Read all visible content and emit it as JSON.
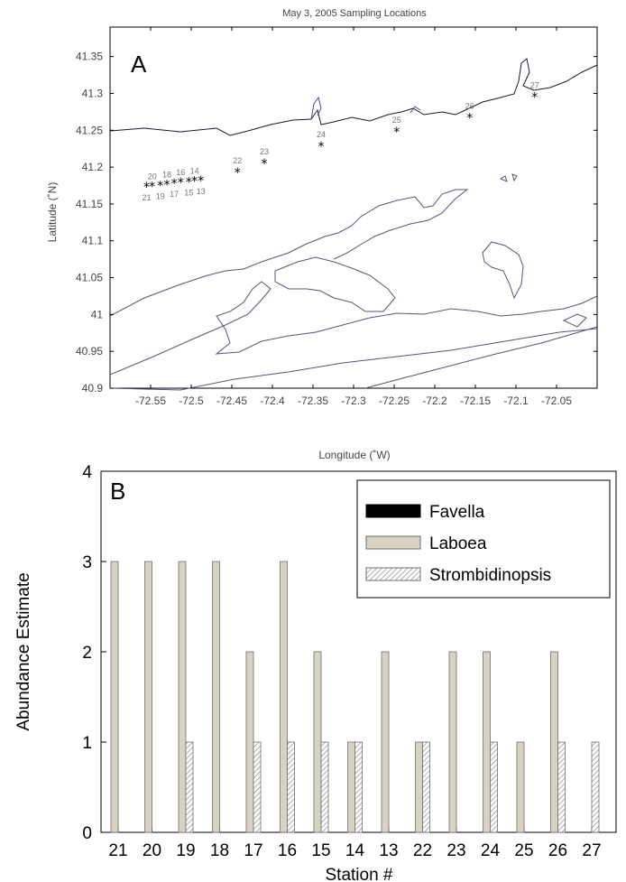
{
  "map": {
    "title": "May 3, 2005 Sampling Locations",
    "panel_label": "A",
    "xlabel": "Longitude (˚W)",
    "ylabel": "Latitude (˚N)",
    "xlim": [
      -72.6,
      -72.0
    ],
    "ylim": [
      40.9,
      41.39
    ],
    "xticks": [
      "-72.55",
      "-72.5",
      "-72.45",
      "-72.4",
      "-72.35",
      "-72.3",
      "-72.25",
      "-72.2",
      "-72.15",
      "-72.1",
      "-72.05"
    ],
    "xtick_values": [
      -72.55,
      -72.5,
      -72.45,
      -72.4,
      -72.35,
      -72.3,
      -72.25,
      -72.2,
      -72.15,
      -72.1,
      -72.05
    ],
    "yticks": [
      "40.9",
      "40.95",
      "41",
      "41.05",
      "41.1",
      "41.15",
      "41.2",
      "41.25",
      "41.3",
      "41.35"
    ],
    "ytick_values": [
      40.9,
      40.95,
      41.0,
      41.05,
      41.1,
      41.15,
      41.2,
      41.25,
      41.3,
      41.35
    ],
    "stations": [
      {
        "label": "21",
        "lon": -72.555,
        "lat": 41.173
      },
      {
        "label": "20",
        "lon": -72.548,
        "lat": 41.174
      },
      {
        "label": "19",
        "lon": -72.538,
        "lat": 41.175
      },
      {
        "label": "18",
        "lon": -72.53,
        "lat": 41.176
      },
      {
        "label": "17",
        "lon": -72.521,
        "lat": 41.178
      },
      {
        "label": "16",
        "lon": -72.513,
        "lat": 41.179
      },
      {
        "label": "15",
        "lon": -72.503,
        "lat": 41.18
      },
      {
        "label": "14",
        "lon": -72.496,
        "lat": 41.181
      },
      {
        "label": "13",
        "lon": -72.488,
        "lat": 41.182
      },
      {
        "label": "22",
        "lon": -72.443,
        "lat": 41.193
      },
      {
        "label": "23",
        "lon": -72.41,
        "lat": 41.205
      },
      {
        "label": "24",
        "lon": -72.34,
        "lat": 41.228
      },
      {
        "label": "25",
        "lon": -72.247,
        "lat": 41.248
      },
      {
        "label": "26",
        "lon": -72.157,
        "lat": 41.267
      },
      {
        "label": "27",
        "lon": -72.077,
        "lat": 41.295
      }
    ]
  },
  "chart_data": {
    "type": "bar",
    "panel_label": "B",
    "xlabel": "Station #",
    "ylabel": "Abundance Estimate",
    "ylim": [
      0,
      4
    ],
    "yticks": [
      "0",
      "1",
      "2",
      "3",
      "4"
    ],
    "ytick_values": [
      0,
      1,
      2,
      3,
      4
    ],
    "categories": [
      "21",
      "20",
      "19",
      "18",
      "17",
      "16",
      "15",
      "14",
      "13",
      "22",
      "23",
      "24",
      "25",
      "26",
      "27"
    ],
    "series": [
      {
        "name": "Favella",
        "values": [
          0,
          0,
          0,
          0,
          0,
          0,
          0,
          0,
          0,
          0,
          0,
          0,
          0,
          0,
          0
        ],
        "color": "#000000"
      },
      {
        "name": "Laboea",
        "values": [
          3,
          3,
          3,
          3,
          2,
          3,
          2,
          1,
          2,
          1,
          2,
          2,
          1,
          2,
          0
        ],
        "color": "#d8d2c2"
      },
      {
        "name": "Strombidinopsis",
        "values": [
          0,
          0,
          1,
          0,
          1,
          1,
          1,
          1,
          0,
          1,
          0,
          1,
          0,
          1,
          1
        ],
        "color": "#ffffff"
      }
    ],
    "legend_position": "top-right",
    "grid": false
  }
}
